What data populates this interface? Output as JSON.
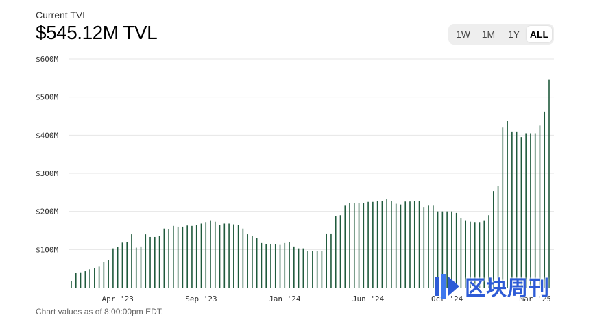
{
  "header": {
    "subtitle": "Current TVL",
    "title": "$545.12M TVL"
  },
  "range": {
    "options": [
      "1W",
      "1M",
      "1Y",
      "ALL"
    ],
    "selected": "ALL"
  },
  "footnote": "Chart values as of 8:00:00pm EDT.",
  "watermark": {
    "text": "区块周刊",
    "color": "#2d5bd6"
  },
  "colors": {
    "bar": "#1f5a3c",
    "grid": "#e6e6e6",
    "axis_text": "#333333"
  },
  "chart_data": {
    "type": "bar",
    "title": "",
    "xlabel": "",
    "ylabel": "",
    "ylim": [
      0,
      600
    ],
    "y_ticks": [
      100,
      200,
      300,
      400,
      500,
      600
    ],
    "y_tick_labels": [
      "$100M",
      "$200M",
      "$300M",
      "$400M",
      "$500M",
      "$600M"
    ],
    "x_tick_labels": [
      {
        "label": "Apr '23",
        "index": 10
      },
      {
        "label": "Sep '23",
        "index": 28
      },
      {
        "label": "Jan '24",
        "index": 46
      },
      {
        "label": "Jun '24",
        "index": 64
      },
      {
        "label": "Oct '24",
        "index": 81
      },
      {
        "label": "Mar '25",
        "index": 100
      }
    ],
    "series": [
      {
        "values": [
          17,
          38,
          40,
          43,
          48,
          52,
          55,
          68,
          72,
          103,
          107,
          118,
          120,
          140,
          105,
          108,
          140,
          133,
          133,
          135,
          155,
          153,
          162,
          160,
          160,
          163,
          162,
          165,
          168,
          172,
          175,
          173,
          165,
          168,
          168,
          166,
          165,
          155,
          140,
          135,
          130,
          117,
          115,
          115,
          115,
          112,
          117,
          120,
          108,
          103,
          103,
          97,
          97,
          97,
          97,
          142,
          142,
          187,
          190,
          215,
          222,
          222,
          222,
          222,
          225,
          225,
          227,
          227,
          232,
          227,
          220,
          218,
          226,
          226,
          227,
          227,
          210,
          215,
          215,
          200,
          200,
          200,
          200,
          196,
          183,
          175,
          173,
          172,
          172,
          175,
          190,
          253,
          267,
          420,
          437,
          408,
          408,
          395,
          405,
          405,
          405,
          425,
          462,
          545
        ]
      }
    ]
  }
}
